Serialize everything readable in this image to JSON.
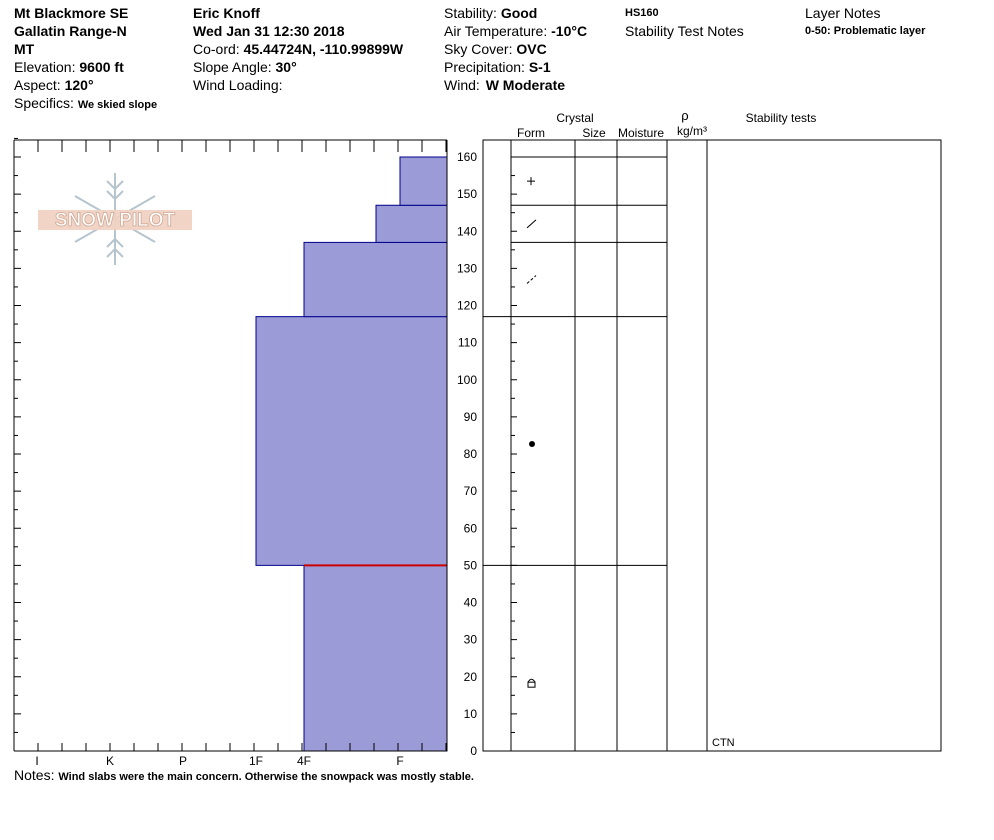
{
  "header": {
    "location": "Mt Blackmore SE",
    "range": "Gallatin Range-N",
    "state": "MT",
    "elevation_label": "Elevation:",
    "elevation": "9600 ft",
    "aspect_label": "Aspect:",
    "aspect": "120°",
    "specifics_label": "Specifics:",
    "specifics": "We skied slope",
    "observer": "Eric Knoff",
    "datetime": "Wed Jan 31 12:30 2018",
    "coord_label": "Co-ord:",
    "coord": "45.44724N, -110.99899W",
    "slope_label": "Slope Angle:",
    "slope": "30°",
    "wind_loading_label": "Wind Loading:",
    "wind_loading": "",
    "stability_label": "Stability:",
    "stability": "Good",
    "air_temp_label": "Air Temperature:",
    "air_temp": "-10°C",
    "sky_label": "Sky Cover:",
    "sky": "OVC",
    "precip_label": "Precipitation:",
    "precip": "S-1",
    "wind_label": "Wind:",
    "wind": "W Moderate",
    "hs": "HS160",
    "stability_notes": "Stability Test Notes",
    "layer_notes_title": "Layer Notes",
    "layer_note": "0-50: Problematic layer"
  },
  "logo": {
    "text": "SNOW PILOT"
  },
  "columns": {
    "crystal": "Crystal",
    "form": "Form",
    "size": "Size",
    "moisture": "Moisture",
    "rho": "ρ",
    "density_unit": "kg/m³",
    "stability_tests": "Stability tests"
  },
  "stability_test_result": "CTN",
  "notes_label": "Notes:",
  "notes": "Wind slabs were the main concern. Otherwise the snowpack was mostly stable.",
  "colors": {
    "layer_fill": "#9b9bd7",
    "layer_stroke": "#00008b",
    "problem_line": "#cc0000"
  },
  "chart_data": {
    "type": "bar",
    "title": "",
    "xlabel": "",
    "ylabel": "",
    "hardness_scale": [
      "I",
      "K",
      "P",
      "1F",
      "4F",
      "F"
    ],
    "ylim": [
      0,
      160
    ],
    "yticks": [
      0,
      10,
      20,
      30,
      40,
      50,
      60,
      70,
      80,
      90,
      100,
      110,
      120,
      130,
      140,
      150,
      160
    ],
    "layers": [
      {
        "bottom": 0,
        "top": 50,
        "hardness": "4F",
        "form": "facets-rounding"
      },
      {
        "bottom": 50,
        "top": 117,
        "hardness": "1F",
        "form": "rounded-grains"
      },
      {
        "bottom": 117,
        "top": 137,
        "hardness": "4F",
        "form": "decomposing-fragments"
      },
      {
        "bottom": 137,
        "top": 147,
        "hardness": "4F-F",
        "form": "decomposing-fragments"
      },
      {
        "bottom": 147,
        "top": 160,
        "hardness": "F",
        "form": "new-snow"
      }
    ],
    "problematic_layer_height": 50
  }
}
